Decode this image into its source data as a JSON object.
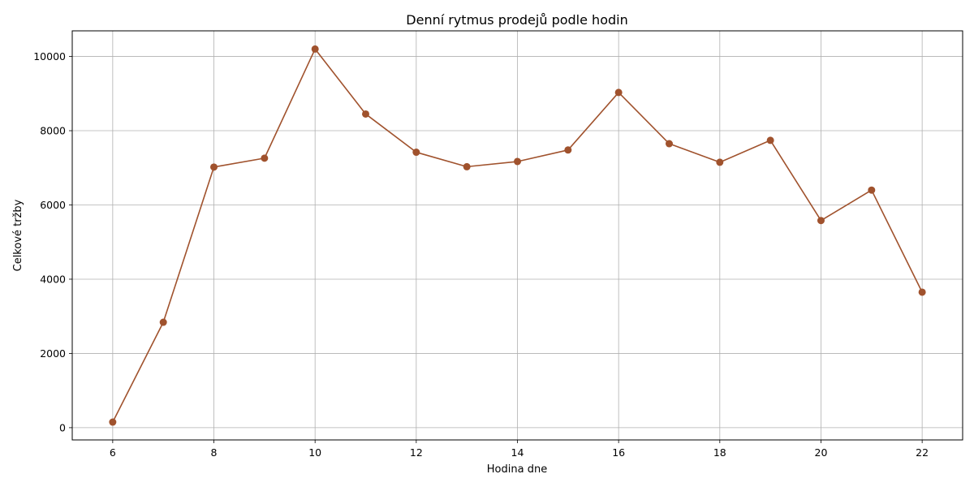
{
  "chart_data": {
    "type": "line",
    "title": "Denní rytmus prodejů podle hodin",
    "xlabel": "Hodina dne",
    "ylabel": "Celkové tržby",
    "x": [
      6,
      7,
      8,
      9,
      10,
      11,
      12,
      13,
      14,
      15,
      16,
      17,
      18,
      19,
      20,
      21,
      22
    ],
    "series": [
      {
        "values": [
          150,
          2840,
          7020,
          7260,
          10200,
          8450,
          7420,
          7030,
          7170,
          7480,
          9030,
          7650,
          7150,
          7740,
          5580,
          6400,
          3650
        ],
        "color": "#a0522d"
      }
    ],
    "xlim": [
      5.2,
      22.8
    ],
    "ylim": [
      -330,
      10690
    ],
    "xticks": [
      6,
      8,
      10,
      12,
      14,
      16,
      18,
      20,
      22
    ],
    "yticks": [
      0,
      2000,
      4000,
      6000,
      8000,
      10000
    ],
    "grid": true,
    "legend": "none",
    "marker": "circle"
  }
}
